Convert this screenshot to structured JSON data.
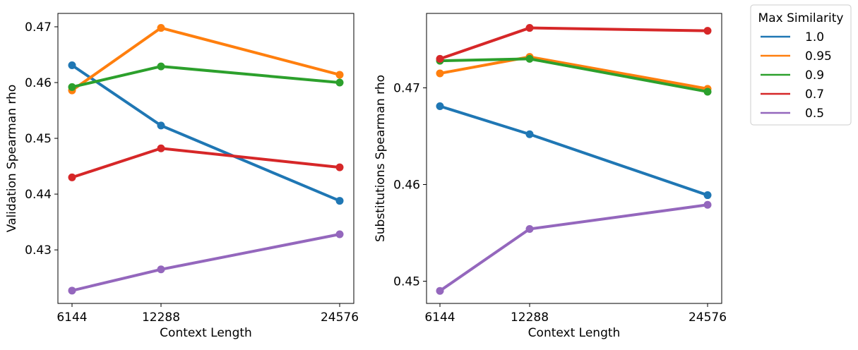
{
  "legend": {
    "title": "Max Similarity",
    "entries": [
      {
        "label": "1.0",
        "color": "#1f77b4"
      },
      {
        "label": "0.95",
        "color": "#ff7f0e"
      },
      {
        "label": "0.9",
        "color": "#2ca02c"
      },
      {
        "label": "0.7",
        "color": "#d62728"
      },
      {
        "label": "0.5",
        "color": "#9467bd"
      }
    ]
  },
  "chart_data": [
    {
      "type": "line",
      "categories": [
        "6144",
        "12288",
        "24576"
      ],
      "xlabel": "Context Length",
      "ylabel": "Validation Spearman rho",
      "ylim": [
        0.4204,
        0.4724
      ],
      "yticks": [
        0.43,
        0.44,
        0.45,
        0.46,
        0.47
      ],
      "ytick_labels": [
        "0.43",
        "0.44",
        "0.45",
        "0.46",
        "0.47"
      ],
      "series": [
        {
          "name": "1.0",
          "color": "#1f77b4",
          "values": [
            0.4631,
            0.4523,
            0.4388
          ]
        },
        {
          "name": "0.95",
          "color": "#ff7f0e",
          "values": [
            0.4586,
            0.4698,
            0.4614
          ]
        },
        {
          "name": "0.9",
          "color": "#2ca02c",
          "values": [
            0.4592,
            0.4629,
            0.46
          ]
        },
        {
          "name": "0.7",
          "color": "#d62728",
          "values": [
            0.443,
            0.4482,
            0.4448
          ]
        },
        {
          "name": "0.5",
          "color": "#9467bd",
          "values": [
            0.4227,
            0.4265,
            0.4328
          ]
        }
      ]
    },
    {
      "type": "line",
      "categories": [
        "6144",
        "12288",
        "24576"
      ],
      "xlabel": "Context Length",
      "ylabel": "Substitutions Spearman rho",
      "ylim": [
        0.4477,
        0.4777
      ],
      "yticks": [
        0.45,
        0.46,
        0.47
      ],
      "ytick_labels": [
        "0.45",
        "0.46",
        "0.47"
      ],
      "series": [
        {
          "name": "1.0",
          "color": "#1f77b4",
          "values": [
            0.4681,
            0.4652,
            0.4589
          ]
        },
        {
          "name": "0.95",
          "color": "#ff7f0e",
          "values": [
            0.4715,
            0.4732,
            0.4699
          ]
        },
        {
          "name": "0.9",
          "color": "#2ca02c",
          "values": [
            0.4728,
            0.473,
            0.4696
          ]
        },
        {
          "name": "0.7",
          "color": "#d62728",
          "values": [
            0.473,
            0.4762,
            0.4759
          ]
        },
        {
          "name": "0.5",
          "color": "#9467bd",
          "values": [
            0.449,
            0.4554,
            0.4579
          ]
        }
      ]
    }
  ]
}
